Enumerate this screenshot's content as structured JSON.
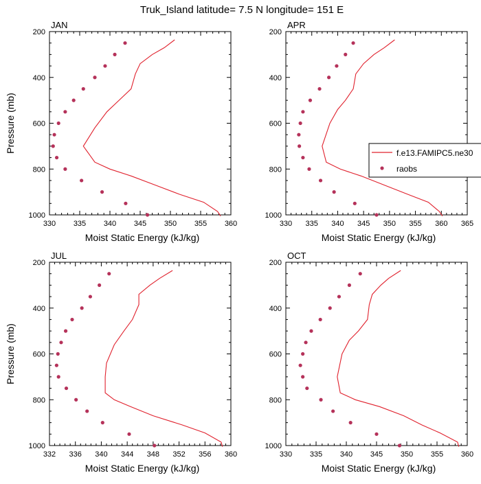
{
  "title": "Truk_Island  latitude= 7.5 N longitude= 151 E",
  "legend": {
    "model": "f.e13.FAMIPC5.ne30",
    "obs": "raobs"
  },
  "colors": {
    "model_line": "#e0202c",
    "obs_marker": "#b5325a",
    "axis": "#000000"
  },
  "chart_data": [
    {
      "type": "line",
      "panel": "JAN",
      "xlabel": "Moist Static Energy (kJ/kg)",
      "ylabel": "Pressure (mb)",
      "xlim": [
        330,
        360
      ],
      "ylim": [
        1000,
        200
      ],
      "xticks": [
        330,
        335,
        340,
        345,
        350,
        355,
        360
      ],
      "yticks": [
        200,
        400,
        600,
        800,
        1000
      ],
      "series": [
        {
          "name": "f.e13.FAMIPC5.ne30",
          "style": "line",
          "x": [
            350.7,
            349,
            347,
            345,
            344.2,
            343.5,
            341.5,
            339.5,
            337.5,
            335.6,
            337.5,
            340,
            343.5,
            347.5,
            351.5,
            355.5,
            357.8,
            358.3
          ],
          "y": [
            236,
            270,
            300,
            340,
            385,
            450,
            500,
            550,
            620,
            700,
            770,
            800,
            830,
            870,
            910,
            945,
            985,
            1005
          ]
        },
        {
          "name": "raobs",
          "style": "marker",
          "x": [
            342.5,
            340.8,
            339.2,
            337.5,
            335.6,
            334,
            332.6,
            331.5,
            330.8,
            330.6,
            331.2,
            332.6,
            335.3,
            338.7,
            342.6,
            346.2
          ],
          "y": [
            250,
            300,
            350,
            400,
            450,
            500,
            550,
            600,
            650,
            700,
            750,
            800,
            850,
            900,
            950,
            1000
          ]
        }
      ]
    },
    {
      "type": "line",
      "panel": "APR",
      "xlabel": "Moist Static Energy (kJ/kg)",
      "ylabel": "",
      "xlim": [
        330,
        365
      ],
      "ylim": [
        1000,
        200
      ],
      "xticks": [
        330,
        335,
        340,
        345,
        350,
        355,
        360,
        365
      ],
      "yticks": [
        200,
        400,
        600,
        800,
        1000
      ],
      "series": [
        {
          "name": "f.e13.FAMIPC5.ne30",
          "style": "line",
          "x": [
            351,
            349,
            347,
            345,
            343.5,
            343,
            341.5,
            340,
            338.5,
            337,
            337.8,
            340.5,
            344.5,
            349,
            353.5,
            357.5,
            359.6,
            360.2
          ],
          "y": [
            236,
            270,
            300,
            340,
            385,
            450,
            500,
            540,
            600,
            700,
            770,
            800,
            830,
            870,
            910,
            945,
            985,
            1005
          ]
        },
        {
          "name": "raobs",
          "style": "marker",
          "x": [
            343,
            341.5,
            339.8,
            338.3,
            336.5,
            334.7,
            333.3,
            332.8,
            332.5,
            332.6,
            333.3,
            334.5,
            336.7,
            339.3,
            343.3,
            347.5
          ],
          "y": [
            250,
            300,
            350,
            400,
            450,
            500,
            550,
            600,
            650,
            700,
            750,
            800,
            850,
            900,
            950,
            1000
          ]
        }
      ]
    },
    {
      "type": "line",
      "panel": "JUL",
      "xlabel": "Moist Static Energy (kJ/kg)",
      "ylabel": "Pressure (mb)",
      "xlim": [
        332,
        360
      ],
      "ylim": [
        1000,
        200
      ],
      "xticks": [
        332,
        336,
        340,
        344,
        348,
        352,
        356,
        360
      ],
      "yticks": [
        200,
        400,
        600,
        800,
        1000
      ],
      "series": [
        {
          "name": "f.e13.FAMIPC5.ne30",
          "style": "line",
          "x": [
            351,
            349,
            347.5,
            345.8,
            345.8,
            344.8,
            343.5,
            342,
            340.8,
            340.6,
            340.6,
            342,
            344.5,
            348,
            352.5,
            356,
            358.5,
            358.7
          ],
          "y": [
            236,
            270,
            300,
            340,
            385,
            450,
            500,
            560,
            640,
            700,
            770,
            800,
            830,
            870,
            910,
            945,
            985,
            1005
          ]
        },
        {
          "name": "raobs",
          "style": "marker",
          "x": [
            341.2,
            339.7,
            338.3,
            337,
            335.5,
            334.5,
            333.8,
            333.3,
            333.1,
            333.4,
            334.6,
            336.1,
            337.8,
            340.2,
            344.3,
            348.2
          ],
          "y": [
            250,
            300,
            350,
            400,
            450,
            500,
            550,
            600,
            650,
            700,
            750,
            800,
            850,
            900,
            950,
            1000
          ]
        }
      ]
    },
    {
      "type": "line",
      "panel": "OCT",
      "xlabel": "Moist Static Energy (kJ/kg)",
      "ylabel": "",
      "xlim": [
        330,
        360
      ],
      "ylim": [
        1000,
        200
      ],
      "xticks": [
        330,
        335,
        340,
        345,
        350,
        355,
        360
      ],
      "yticks": [
        200,
        400,
        600,
        800,
        1000
      ],
      "series": [
        {
          "name": "f.e13.FAMIPC5.ne30",
          "style": "line",
          "x": [
            349,
            347,
            345.7,
            344.3,
            343.8,
            343.5,
            342,
            340.5,
            339.3,
            338.5,
            339,
            341.5,
            345.5,
            349.5,
            352.5,
            355.5,
            358.4,
            358.6
          ],
          "y": [
            236,
            270,
            300,
            340,
            385,
            450,
            500,
            540,
            600,
            700,
            770,
            800,
            830,
            870,
            910,
            945,
            985,
            1005
          ]
        },
        {
          "name": "raobs",
          "style": "marker",
          "x": [
            342.3,
            340.5,
            338.8,
            337.3,
            335.7,
            334.2,
            333.3,
            332.8,
            332.4,
            332.8,
            333.5,
            335.8,
            337.8,
            340.7,
            345,
            348.8
          ],
          "y": [
            250,
            300,
            350,
            400,
            450,
            500,
            550,
            600,
            650,
            700,
            750,
            800,
            850,
            900,
            950,
            1000
          ]
        }
      ]
    }
  ]
}
